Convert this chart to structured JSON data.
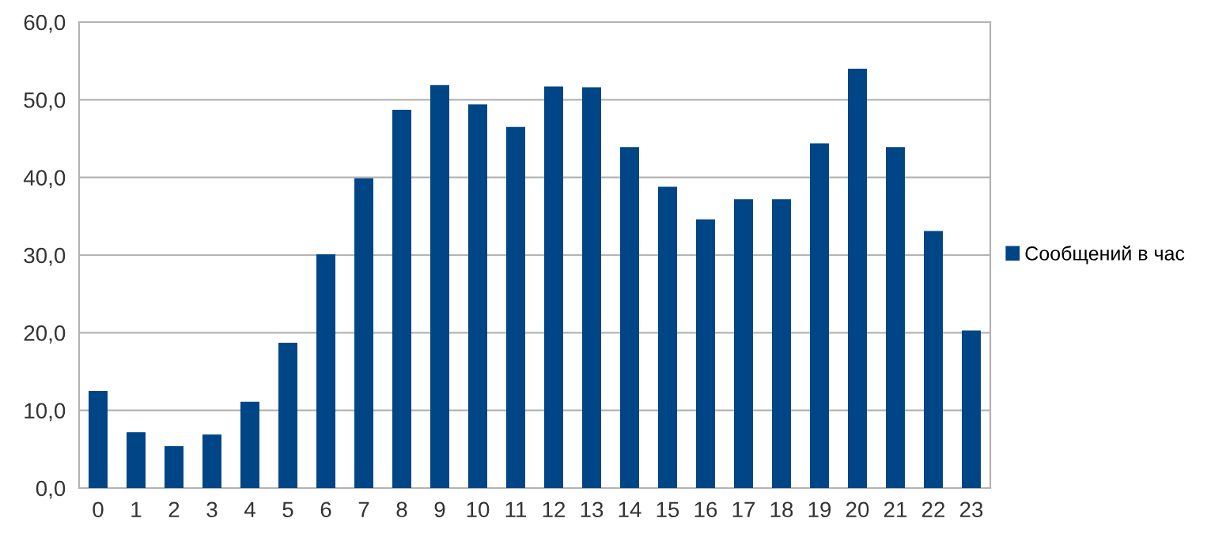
{
  "chart_data": {
    "type": "bar",
    "categories": [
      "0",
      "1",
      "2",
      "3",
      "4",
      "5",
      "6",
      "7",
      "8",
      "9",
      "10",
      "11",
      "12",
      "13",
      "14",
      "15",
      "16",
      "17",
      "18",
      "19",
      "20",
      "21",
      "22",
      "23"
    ],
    "series": [
      {
        "name": "Сообщений в час",
        "color": "#004586",
        "values": [
          12.5,
          7.2,
          5.4,
          6.9,
          11.1,
          18.7,
          30.1,
          39.9,
          48.7,
          51.9,
          49.4,
          46.5,
          51.7,
          51.6,
          43.9,
          38.8,
          34.6,
          37.2,
          37.2,
          44.4,
          54.0,
          43.9,
          33.1,
          20.3
        ]
      }
    ],
    "ylim": [
      0,
      60
    ],
    "yticks": [
      {
        "value": 0,
        "label": "0,0"
      },
      {
        "value": 10,
        "label": "10,0"
      },
      {
        "value": 20,
        "label": "20,0"
      },
      {
        "value": 30,
        "label": "30,0"
      },
      {
        "value": 40,
        "label": "40,0"
      },
      {
        "value": 50,
        "label": "50,0"
      },
      {
        "value": 60,
        "label": "60,0"
      }
    ],
    "grid": "y",
    "legend": "right"
  }
}
